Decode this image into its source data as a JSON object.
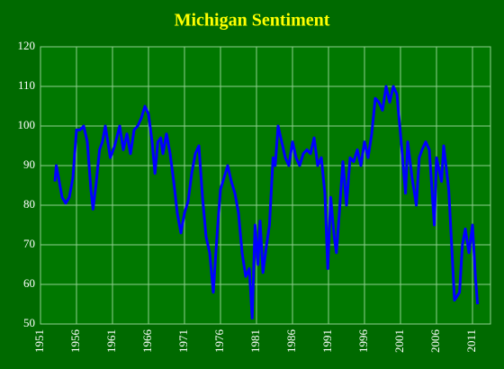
{
  "chart_data": {
    "type": "line",
    "title": "Michigan Sentiment",
    "x": [
      1953,
      1953.2,
      1954,
      1954.5,
      1955,
      1955.5,
      1956,
      1956.5,
      1957,
      1957.5,
      1958,
      1958.3,
      1958.7,
      1959.2,
      1959.6,
      1960,
      1960.7,
      1961.3,
      1962,
      1962.5,
      1963,
      1963.5,
      1964,
      1964.5,
      1965,
      1965.5,
      1966,
      1966.5,
      1966.9,
      1967.3,
      1967.7,
      1968,
      1968.5,
      1969,
      1969.5,
      1970,
      1970.5,
      1971,
      1971.5,
      1972,
      1972.5,
      1973,
      1973.5,
      1974,
      1974.5,
      1975,
      1975.5,
      1976,
      1976.5,
      1977,
      1977.5,
      1978,
      1978.5,
      1979,
      1979.5,
      1980,
      1980.4,
      1980.8,
      1981.2,
      1981.5,
      1981.9,
      1982.4,
      1982.8,
      1983.3,
      1983.6,
      1984,
      1984.5,
      1985,
      1985.5,
      1986,
      1986.5,
      1987,
      1987.5,
      1988,
      1988.5,
      1989,
      1989.5,
      1990,
      1990.5,
      1990.9,
      1991.3,
      1991.8,
      1992.1,
      1992.5,
      1993,
      1993.5,
      1994,
      1994.5,
      1995,
      1995.5,
      1996,
      1996.5,
      1997,
      1997.5,
      1998,
      1998.5,
      1999,
      1999.5,
      2000,
      2000.5,
      2001,
      2001.7,
      2002,
      2002.6,
      2003.2,
      2003.6,
      2004,
      2004.5,
      2005,
      2005.7,
      2006,
      2006.7,
      2007,
      2007.7,
      2008.1,
      2008.5,
      2009.2,
      2009.6,
      2010,
      2010.5,
      2011,
      2011.4,
      2011.7
    ],
    "values": [
      86,
      90,
      82,
      80.5,
      82,
      87,
      99,
      99,
      100,
      96,
      84,
      79,
      85,
      94,
      96,
      100,
      92,
      95,
      100,
      94,
      98,
      93,
      99,
      100,
      102,
      105,
      103,
      96,
      88,
      96,
      97,
      93,
      98,
      93,
      86,
      78,
      73,
      78,
      81,
      88,
      93,
      95,
      82,
      72,
      68,
      58,
      72,
      84,
      87,
      90,
      86,
      83,
      78,
      68,
      62,
      64,
      51.5,
      75,
      65,
      76,
      63,
      70,
      75,
      92,
      90,
      100,
      96,
      92,
      90,
      96,
      92,
      90,
      93,
      94,
      93,
      97,
      90,
      92,
      83,
      64,
      82,
      72,
      68,
      78,
      91,
      80,
      92,
      91,
      94,
      90,
      96,
      92,
      98,
      107,
      106,
      104,
      110,
      106,
      110,
      108,
      98,
      83,
      96,
      87,
      80,
      92,
      94,
      96,
      94,
      75,
      92,
      86,
      95,
      84,
      70,
      56,
      58,
      70,
      74,
      68,
      75,
      62,
      55
    ],
    "color": "#0000ff",
    "xlim": [
      1951,
      2013.5
    ],
    "xticks": [
      1951,
      1956,
      1961,
      1966,
      1971,
      1976,
      1981,
      1986,
      1991,
      1996,
      2001,
      2006,
      2011
    ],
    "ylim": [
      50,
      120
    ],
    "yticks": [
      50,
      60,
      70,
      80,
      90,
      100,
      110,
      120
    ],
    "grid": true
  }
}
